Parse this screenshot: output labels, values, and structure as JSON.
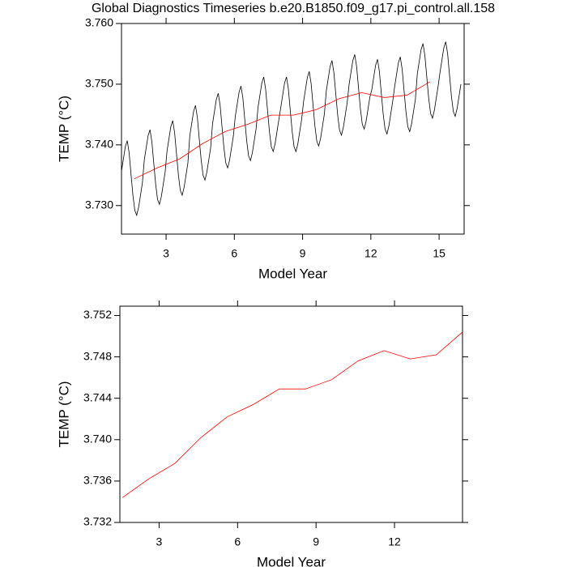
{
  "chart_data": [
    {
      "type": "line",
      "title": "Global Diagnostics Timeseries b.e20.B1850.f09_g17.pi_control.all.158",
      "y_label": "TEMP (°C)",
      "x_label": "Model Year",
      "xlim": [
        1.04,
        16.1
      ],
      "xticks": [
        3,
        6,
        9,
        12,
        15
      ],
      "ylim": [
        3.7253,
        3.76
      ],
      "yticks": [
        {
          "value": 3.73,
          "label": "3.730"
        },
        {
          "value": 3.74,
          "label": "3.740"
        },
        {
          "value": 3.75,
          "label": "3.750"
        },
        {
          "value": 3.76,
          "label": "3.760"
        }
      ],
      "series": [
        {
          "color": "#000000",
          "x": [
            1.042,
            1.125,
            1.208,
            1.292,
            1.375,
            1.458,
            1.542,
            1.625,
            1.708,
            1.792,
            1.875,
            1.958,
            2.042,
            2.125,
            2.208,
            2.292,
            2.375,
            2.458,
            2.542,
            2.625,
            2.708,
            2.792,
            2.875,
            2.958,
            3.042,
            3.125,
            3.208,
            3.292,
            3.375,
            3.458,
            3.542,
            3.625,
            3.708,
            3.792,
            3.875,
            3.958,
            4.042,
            4.125,
            4.208,
            4.292,
            4.375,
            4.458,
            4.542,
            4.625,
            4.708,
            4.792,
            4.875,
            4.958,
            5.042,
            5.125,
            5.208,
            5.292,
            5.375,
            5.458,
            5.542,
            5.625,
            5.708,
            5.792,
            5.875,
            5.958,
            6.042,
            6.125,
            6.208,
            6.292,
            6.375,
            6.458,
            6.542,
            6.625,
            6.708,
            6.792,
            6.875,
            6.958,
            7.042,
            7.125,
            7.208,
            7.292,
            7.375,
            7.458,
            7.542,
            7.625,
            7.708,
            7.792,
            7.875,
            7.958,
            8.042,
            8.125,
            8.208,
            8.292,
            8.375,
            8.458,
            8.542,
            8.625,
            8.708,
            8.792,
            8.875,
            8.958,
            9.042,
            9.125,
            9.208,
            9.292,
            9.375,
            9.458,
            9.542,
            9.625,
            9.708,
            9.792,
            9.875,
            9.958,
            10.042,
            10.125,
            10.208,
            10.292,
            10.375,
            10.458,
            10.542,
            10.625,
            10.708,
            10.792,
            10.875,
            10.958,
            11.042,
            11.125,
            11.208,
            11.292,
            11.375,
            11.458,
            11.542,
            11.625,
            11.708,
            11.792,
            11.875,
            11.958,
            12.042,
            12.125,
            12.208,
            12.292,
            12.375,
            12.458,
            12.542,
            12.625,
            12.708,
            12.792,
            12.875,
            12.958,
            13.042,
            13.125,
            13.208,
            13.292,
            13.375,
            13.458,
            13.542,
            13.625,
            13.708,
            13.792,
            13.875,
            13.958,
            14.042,
            14.125,
            14.208,
            14.292,
            14.375,
            14.458,
            14.542,
            14.625,
            14.708,
            14.792,
            14.875,
            14.958,
            15.042,
            15.125,
            15.208,
            15.292,
            15.375,
            15.458,
            15.542,
            15.625,
            15.708,
            15.792,
            15.875,
            15.958
          ],
          "values": [
            3.7357,
            3.7377,
            3.7397,
            3.7407,
            3.7387,
            3.7352,
            3.7317,
            3.7292,
            3.7284,
            3.7297,
            3.7317,
            3.7337,
            3.7375,
            3.7395,
            3.7415,
            3.7425,
            3.7405,
            3.737,
            3.7335,
            3.731,
            3.7302,
            3.7315,
            3.7335,
            3.7355,
            3.739,
            3.741,
            3.743,
            3.744,
            3.742,
            3.7385,
            3.735,
            3.7325,
            3.7317,
            3.733,
            3.735,
            3.737,
            3.7415,
            3.7435,
            3.7455,
            3.7465,
            3.7445,
            3.741,
            3.7375,
            3.735,
            3.7342,
            3.7355,
            3.7375,
            3.7395,
            3.7435,
            3.7455,
            3.7475,
            3.7485,
            3.7465,
            3.743,
            3.7395,
            3.737,
            3.7362,
            3.7375,
            3.7395,
            3.7415,
            3.7447,
            3.7467,
            3.7487,
            3.7497,
            3.7477,
            3.7442,
            3.7407,
            3.7382,
            3.7374,
            3.7387,
            3.7407,
            3.7427,
            3.7462,
            3.7482,
            3.7502,
            3.7512,
            3.7492,
            3.7457,
            3.7422,
            3.7397,
            3.7389,
            3.7402,
            3.7422,
            3.7442,
            3.7462,
            3.7482,
            3.7502,
            3.7512,
            3.7492,
            3.7457,
            3.7422,
            3.7397,
            3.7389,
            3.7402,
            3.7422,
            3.7442,
            3.7471,
            3.7491,
            3.7511,
            3.7521,
            3.7501,
            3.7466,
            3.7431,
            3.7406,
            3.7398,
            3.7411,
            3.7431,
            3.7451,
            3.7489,
            3.7509,
            3.7529,
            3.7539,
            3.7519,
            3.7484,
            3.7449,
            3.7424,
            3.7416,
            3.7429,
            3.7449,
            3.7469,
            3.7499,
            3.7519,
            3.7539,
            3.7549,
            3.7529,
            3.7494,
            3.7459,
            3.7434,
            3.7426,
            3.7439,
            3.7459,
            3.7479,
            3.7491,
            3.7511,
            3.7531,
            3.7541,
            3.7521,
            3.7486,
            3.7451,
            3.7426,
            3.7418,
            3.7431,
            3.7451,
            3.7471,
            3.7495,
            3.7515,
            3.7535,
            3.7545,
            3.7525,
            3.749,
            3.7455,
            3.743,
            3.7422,
            3.7435,
            3.7455,
            3.7475,
            3.7517,
            3.7537,
            3.7557,
            3.7567,
            3.7547,
            3.7512,
            3.7477,
            3.7452,
            3.7444,
            3.7457,
            3.7477,
            3.7497,
            3.752,
            3.754,
            3.756,
            3.757,
            3.755,
            3.7515,
            3.748,
            3.7455,
            3.7447,
            3.746,
            3.748,
            3.75
          ]
        },
        {
          "color": "#ff0000",
          "x": [
            1.6,
            2.6,
            3.6,
            4.6,
            5.6,
            6.6,
            7.6,
            8.6,
            9.6,
            10.6,
            11.6,
            12.6,
            13.6,
            14.6
          ],
          "values": [
            3.7344,
            3.7362,
            3.7377,
            3.7402,
            3.7422,
            3.7434,
            3.7449,
            3.7449,
            3.7458,
            3.7476,
            3.7486,
            3.7478,
            3.7482,
            3.7504
          ]
        }
      ]
    },
    {
      "type": "line",
      "y_label": "TEMP (°C)",
      "x_label": "Model Year",
      "xlim": [
        1.5,
        14.6
      ],
      "xticks": [
        3,
        6,
        9,
        12
      ],
      "ylim": [
        3.732,
        3.7529
      ],
      "yticks": [
        3.732,
        3.736,
        {
          "value": 3.74,
          "label": "3.740"
        },
        3.744,
        3.748,
        3.752
      ],
      "series": [
        {
          "color": "#ff0000",
          "x": [
            1.6,
            2.6,
            3.6,
            4.6,
            5.6,
            6.6,
            7.6,
            8.6,
            9.6,
            10.6,
            11.6,
            12.6,
            13.6,
            14.6
          ],
          "values": [
            3.7344,
            3.7362,
            3.7377,
            3.7402,
            3.7422,
            3.7434,
            3.7449,
            3.7449,
            3.7458,
            3.7476,
            3.7486,
            3.7478,
            3.7482,
            3.7504
          ]
        }
      ]
    }
  ]
}
